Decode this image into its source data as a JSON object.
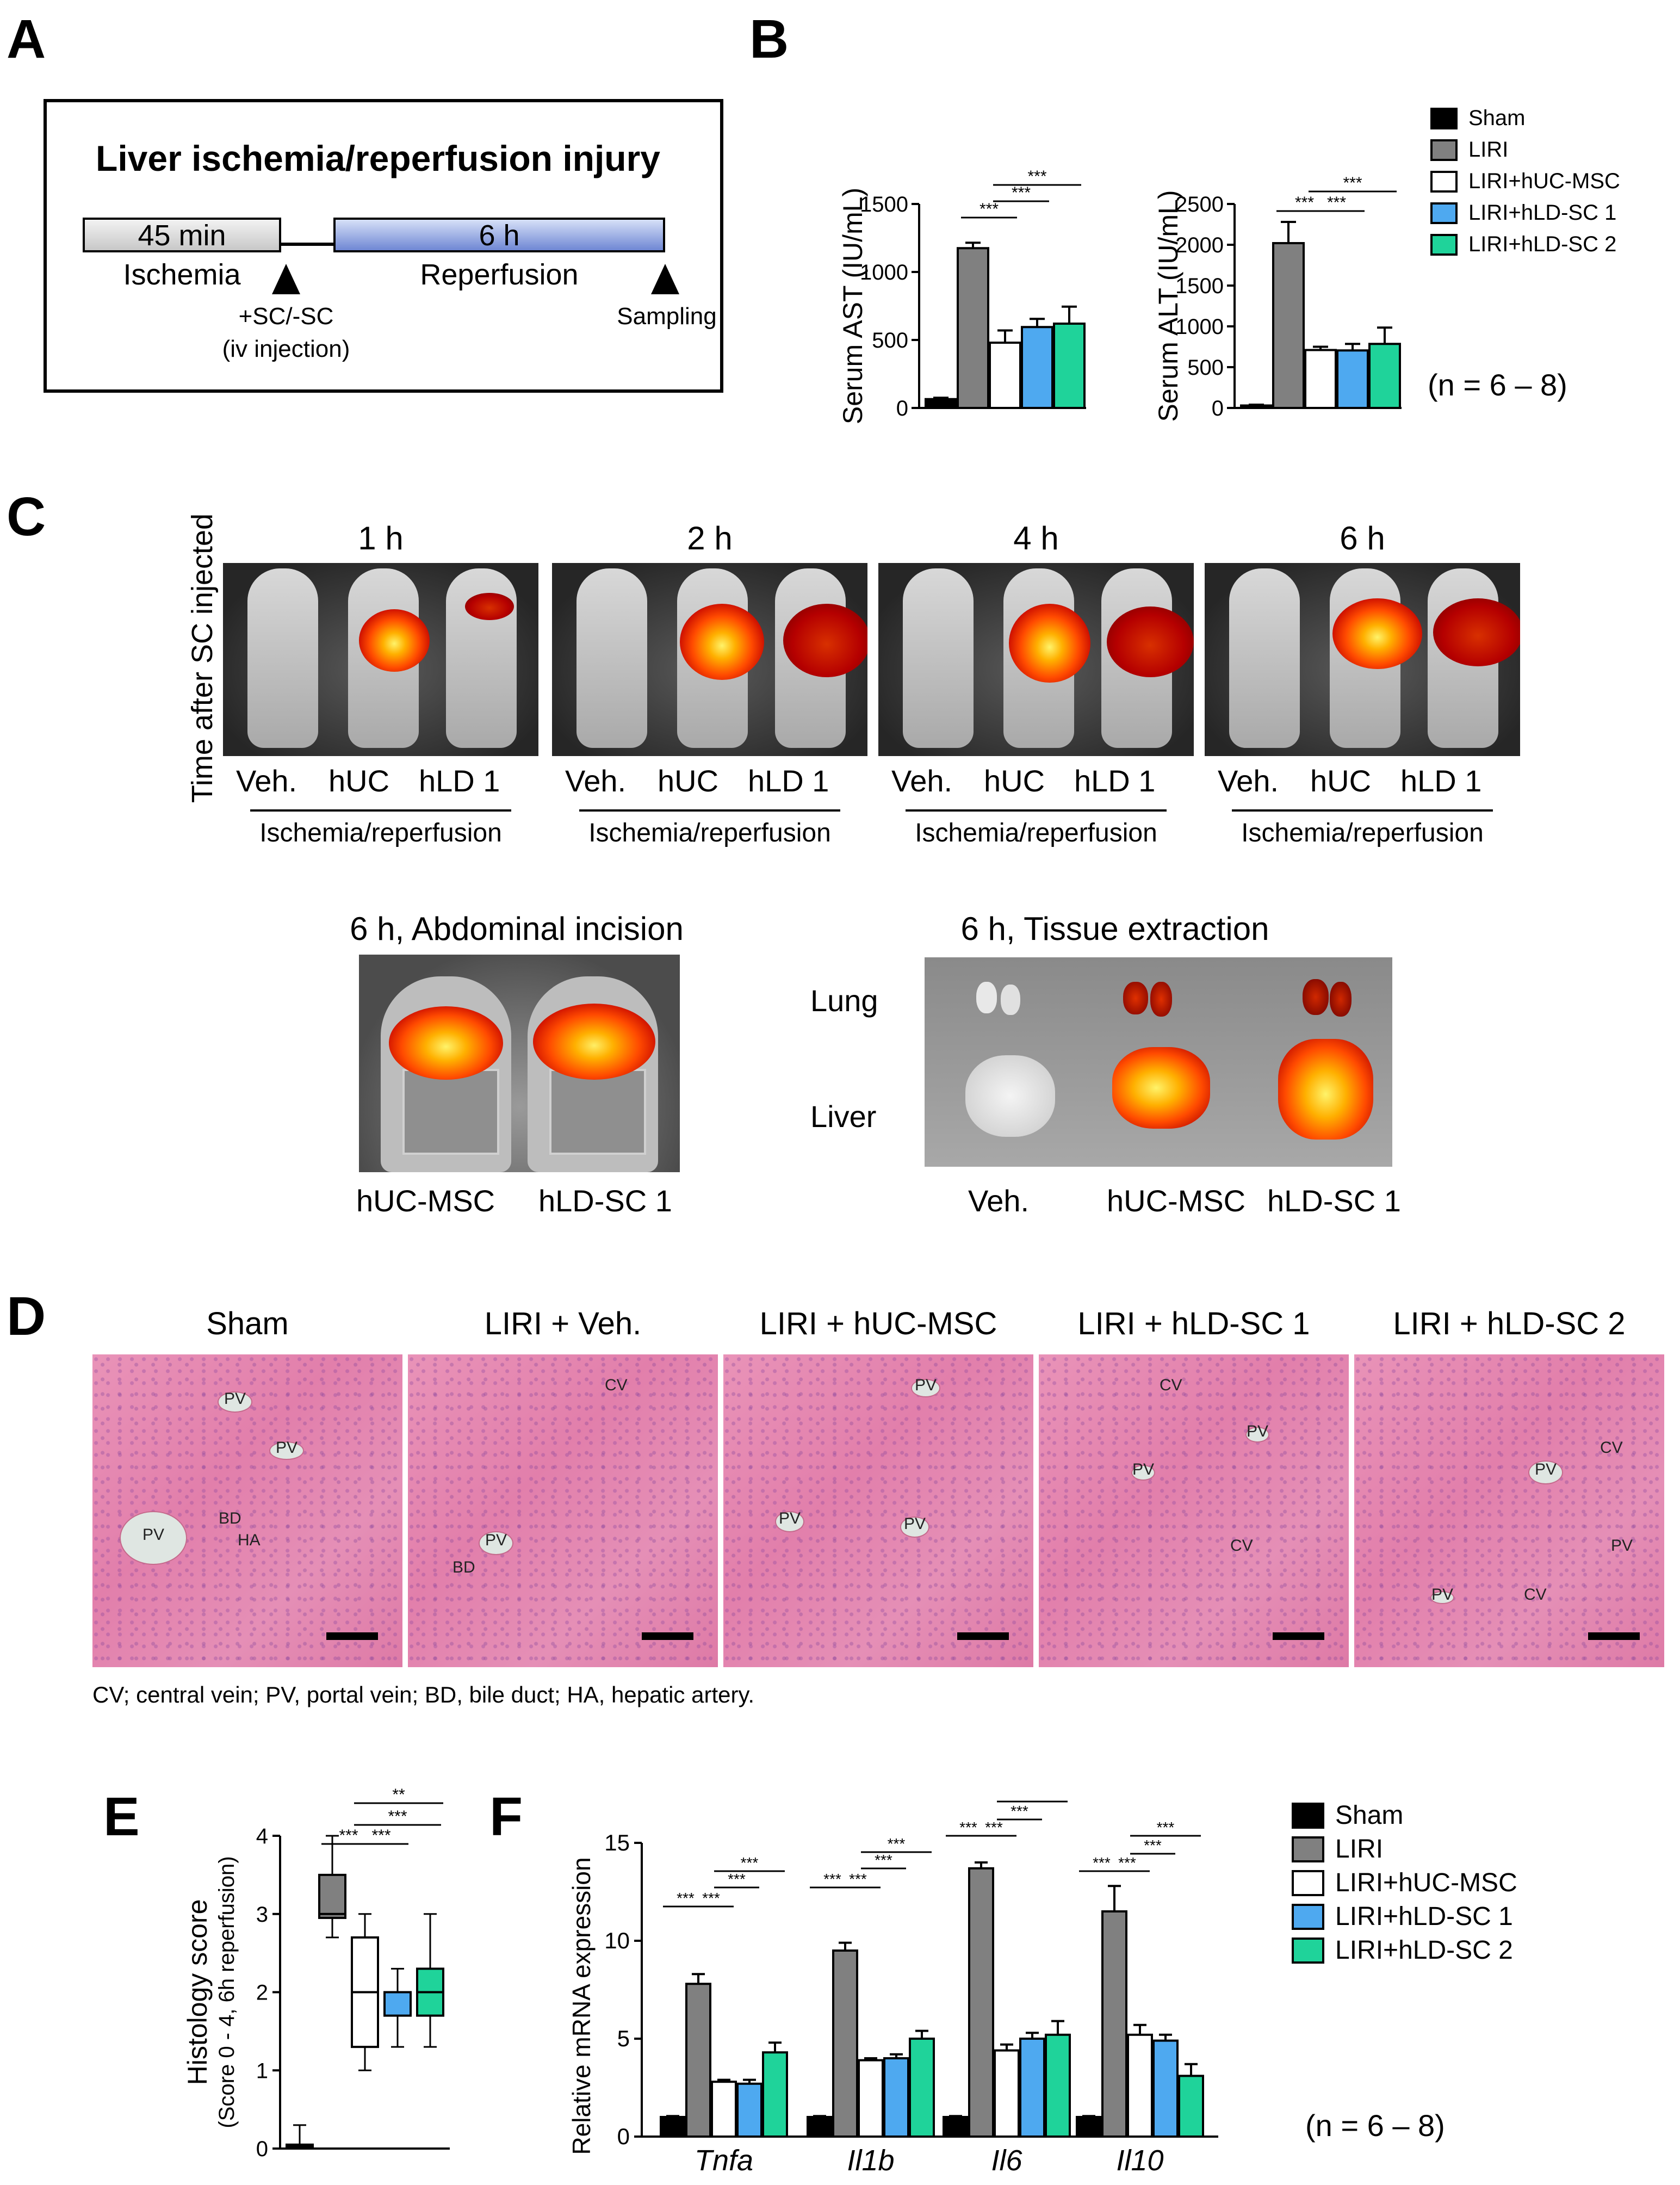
{
  "panels": {
    "a": "A",
    "b": "B",
    "c": "C",
    "d": "D",
    "e": "E",
    "f": "F"
  },
  "panel_a": {
    "title": "Liver ischemia/reperfusion injury",
    "ischemia_time": "45 min",
    "ischemia_label": "Ischemia",
    "reperfusion_time": "6 h",
    "reperfusion_label": "Reperfusion",
    "injection_line1": "+SC/-SC",
    "injection_line2": "(iv injection)",
    "sampling": "Sampling"
  },
  "panel_b": {
    "n_note": "(n = 6 – 8)",
    "legend": [
      {
        "label": "Sham",
        "color": "#000000"
      },
      {
        "label": "LIRI",
        "color": "#808080"
      },
      {
        "label": "LIRI+hUC-MSC",
        "color": "#ffffff"
      },
      {
        "label": "LIRI+hLD-SC 1",
        "color": "#4ea9f0"
      },
      {
        "label": "LIRI+hLD-SC 2",
        "color": "#1fd39a"
      }
    ]
  },
  "panel_c": {
    "side_label": "Time after SC injected",
    "times": [
      "1 h",
      "2 h",
      "4 h",
      "6 h"
    ],
    "group_labels": [
      "Veh.",
      "hUC",
      "hLD 1"
    ],
    "condition": "Ischemia/reperfusion",
    "abdominal_title": "6 h, Abdominal incision",
    "abdominal_labels": [
      "hUC-MSC",
      "hLD-SC 1"
    ],
    "tissue_title": "6 h, Tissue extraction",
    "tissue_rows": [
      "Lung",
      "Liver"
    ],
    "tissue_cols": [
      "Veh.",
      "hUC-MSC",
      "hLD-SC 1"
    ]
  },
  "panel_d": {
    "titles": [
      "Sham",
      "LIRI + Veh.",
      "LIRI + hUC-MSC",
      "LIRI + hLD-SC 1",
      "LIRI + hLD-SC 2"
    ],
    "caption": "CV; central vein; PV, portal vein; BD, bile duct; HA, hepatic artery.",
    "tags": {
      "pv": "PV",
      "cv": "CV",
      "bd": "BD",
      "ha": "HA"
    }
  },
  "panel_f": {
    "n_note": "(n = 6 – 8)",
    "legend": [
      {
        "label": "Sham",
        "color": "#000000"
      },
      {
        "label": "LIRI",
        "color": "#808080"
      },
      {
        "label": "LIRI+hUC-MSC",
        "color": "#ffffff"
      },
      {
        "label": "LIRI+hLD-SC 1",
        "color": "#4ea9f0"
      },
      {
        "label": "LIRI+hLD-SC 2",
        "color": "#1fd39a"
      }
    ]
  },
  "significance": {
    "three": "***",
    "two": "**"
  },
  "chart_data": [
    {
      "id": "ast",
      "type": "bar",
      "ylabel": "Serum AST (IU/mL)",
      "categories": [
        "Sham",
        "LIRI",
        "LIRI+hUC-MSC",
        "LIRI+hLD-SC 1",
        "LIRI+hLD-SC 2"
      ],
      "values": [
        65,
        1175,
        480,
        595,
        620
      ],
      "errors": [
        10,
        40,
        90,
        60,
        125
      ],
      "ylim": [
        0,
        1500
      ],
      "yticks": [
        0,
        500,
        1000,
        1500
      ],
      "grid": false,
      "colors": [
        "#000000",
        "#808080",
        "#ffffff",
        "#4ea9f0",
        "#1fd39a"
      ]
    },
    {
      "id": "alt",
      "type": "bar",
      "ylabel": "Serum ALT (IU/mL)",
      "categories": [
        "Sham",
        "LIRI",
        "LIRI+hUC-MSC",
        "LIRI+hLD-SC 1",
        "LIRI+hLD-SC 2"
      ],
      "values": [
        30,
        2020,
        710,
        705,
        785
      ],
      "errors": [
        10,
        260,
        40,
        80,
        200
      ],
      "ylim": [
        0,
        2500
      ],
      "yticks": [
        0,
        500,
        1000,
        1500,
        2000,
        2500
      ],
      "grid": false,
      "colors": [
        "#000000",
        "#808080",
        "#ffffff",
        "#4ea9f0",
        "#1fd39a"
      ]
    },
    {
      "id": "histology",
      "type": "box",
      "ylabel": "Histology score",
      "ylabel2": "(Score 0 - 4, 6h reperfusion)",
      "categories": [
        "Sham",
        "LIRI",
        "LIRI+hUC-MSC",
        "LIRI+hLD-SC 1",
        "LIRI+hLD-SC 2"
      ],
      "boxes": [
        {
          "min": 0,
          "q1": 0,
          "median": 0,
          "q3": 0.05,
          "max": 0.3
        },
        {
          "min": 2.7,
          "q1": 2.95,
          "median": 3.0,
          "q3": 3.5,
          "max": 4.0
        },
        {
          "min": 1.0,
          "q1": 1.3,
          "median": 2.0,
          "q3": 2.7,
          "max": 3.0
        },
        {
          "min": 1.3,
          "q1": 1.7,
          "median": 2.0,
          "q3": 2.0,
          "max": 2.3
        },
        {
          "min": 1.3,
          "q1": 1.7,
          "median": 2.0,
          "q3": 2.3,
          "max": 3.0
        }
      ],
      "ylim": [
        0,
        4
      ],
      "yticks": [
        0,
        1,
        2,
        3,
        4
      ],
      "grid": false,
      "colors": [
        "#000000",
        "#808080",
        "#ffffff",
        "#4ea9f0",
        "#1fd39a"
      ]
    },
    {
      "id": "mrna",
      "type": "bar",
      "ylabel": "Relative mRNA expression",
      "categories": [
        "Tnfa",
        "Il1b",
        "Il6",
        "Il10"
      ],
      "series": [
        {
          "name": "Sham",
          "values": [
            1,
            1,
            1,
            1
          ],
          "errors": [
            0.05,
            0.05,
            0.05,
            0.05
          ]
        },
        {
          "name": "LIRI",
          "values": [
            7.8,
            9.5,
            13.7,
            11.5
          ],
          "errors": [
            0.5,
            0.4,
            0.3,
            1.3
          ]
        },
        {
          "name": "LIRI+hUC-MSC",
          "values": [
            2.8,
            3.9,
            4.4,
            5.2
          ],
          "errors": [
            0.1,
            0.1,
            0.3,
            0.5
          ]
        },
        {
          "name": "LIRI+hLD-SC 1",
          "values": [
            2.7,
            4.0,
            5.0,
            4.9
          ],
          "errors": [
            0.2,
            0.2,
            0.3,
            0.3
          ]
        },
        {
          "name": "LIRI+hLD-SC 2",
          "values": [
            4.3,
            5.0,
            5.2,
            3.1
          ],
          "errors": [
            0.5,
            0.4,
            0.7,
            0.6
          ]
        }
      ],
      "ylim": [
        0,
        15
      ],
      "yticks": [
        0,
        5,
        10,
        15
      ],
      "grid": false,
      "colors": [
        "#000000",
        "#808080",
        "#ffffff",
        "#4ea9f0",
        "#1fd39a"
      ]
    }
  ]
}
